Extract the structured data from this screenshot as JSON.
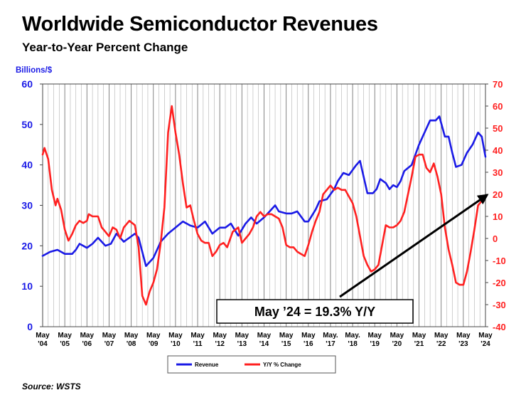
{
  "title": "Worldwide Semiconductor Revenues",
  "subtitle": "Year-to-Year Percent Change",
  "source": "Source: WSTS",
  "chart_data": {
    "type": "line",
    "ylabel": "Billions/$",
    "ylim_left": [
      0,
      60
    ],
    "ylim_right": [
      -40,
      70
    ],
    "yticks_left": [
      0,
      10,
      20,
      30,
      40,
      50,
      60
    ],
    "yticks_right": [
      -40,
      -30,
      -20,
      -10,
      0,
      10,
      20,
      30,
      40,
      50,
      60,
      70
    ],
    "grid": "vertical",
    "xticks": [
      {
        "t": 0,
        "l1": "May",
        "l2": "'04"
      },
      {
        "t": 12,
        "l1": "May",
        "l2": "'05"
      },
      {
        "t": 24,
        "l1": "May",
        "l2": "'06"
      },
      {
        "t": 36,
        "l1": "May",
        "l2": "'07"
      },
      {
        "t": 48,
        "l1": "May",
        "l2": "'08"
      },
      {
        "t": 60,
        "l1": "May",
        "l2": "'09"
      },
      {
        "t": 72,
        "l1": "May",
        "l2": "'10"
      },
      {
        "t": 84,
        "l1": "May",
        "l2": "'11"
      },
      {
        "t": 96,
        "l1": "May",
        "l2": "'12"
      },
      {
        "t": 108,
        "l1": "May",
        "l2": "'13"
      },
      {
        "t": 120,
        "l1": "May",
        "l2": "'14"
      },
      {
        "t": 132,
        "l1": "May",
        "l2": "'15"
      },
      {
        "t": 144,
        "l1": "May",
        "l2": "'16"
      },
      {
        "t": 156,
        "l1": "May.",
        "l2": "'17"
      },
      {
        "t": 168,
        "l1": "May.",
        "l2": "'18"
      },
      {
        "t": 180,
        "l1": "May",
        "l2": "'19"
      },
      {
        "t": 192,
        "l1": "May",
        "l2": "'20"
      },
      {
        "t": 204,
        "l1": "May",
        "l2": "'21"
      },
      {
        "t": 216,
        "l1": "May",
        "l2": "'22"
      },
      {
        "t": 228,
        "l1": "May",
        "l2": "'23"
      },
      {
        "t": 240,
        "l1": "May",
        "l2": "'24"
      }
    ],
    "xlim": [
      0,
      240
    ],
    "series": [
      {
        "name": "Revenue",
        "axis": "left",
        "color": "#1a1ae6",
        "points": [
          [
            0,
            17.5
          ],
          [
            4,
            18.5
          ],
          [
            8,
            19
          ],
          [
            12,
            18
          ],
          [
            16,
            18
          ],
          [
            18,
            19
          ],
          [
            20,
            20.5
          ],
          [
            24,
            19.5
          ],
          [
            27,
            20.5
          ],
          [
            30,
            22
          ],
          [
            34,
            20
          ],
          [
            37,
            20.5
          ],
          [
            40,
            23
          ],
          [
            44,
            21
          ],
          [
            47,
            22
          ],
          [
            50,
            23
          ],
          [
            52,
            22
          ],
          [
            56,
            15
          ],
          [
            60,
            17
          ],
          [
            64,
            21
          ],
          [
            68,
            23
          ],
          [
            72,
            24.5
          ],
          [
            76,
            26
          ],
          [
            80,
            25
          ],
          [
            84,
            24.5
          ],
          [
            88,
            26
          ],
          [
            92,
            23
          ],
          [
            96,
            24.5
          ],
          [
            99,
            24.5
          ],
          [
            102,
            25.5
          ],
          [
            106,
            22.5
          ],
          [
            110,
            25.5
          ],
          [
            113,
            27
          ],
          [
            116,
            25.5
          ],
          [
            120,
            27
          ],
          [
            124,
            29
          ],
          [
            126,
            30
          ],
          [
            128,
            28.5
          ],
          [
            132,
            28
          ],
          [
            135,
            28
          ],
          [
            138,
            28.5
          ],
          [
            142,
            26
          ],
          [
            144,
            26
          ],
          [
            148,
            29
          ],
          [
            150,
            31
          ],
          [
            154,
            31.5
          ],
          [
            158,
            34
          ],
          [
            160,
            36
          ],
          [
            163,
            38
          ],
          [
            166,
            37.5
          ],
          [
            170,
            40
          ],
          [
            172,
            41
          ],
          [
            175,
            35
          ],
          [
            176,
            33
          ],
          [
            179,
            33
          ],
          [
            181,
            34
          ],
          [
            183,
            36.5
          ],
          [
            186,
            35.5
          ],
          [
            188,
            34
          ],
          [
            190,
            35
          ],
          [
            192,
            34.5
          ],
          [
            194,
            36
          ],
          [
            196,
            38.5
          ],
          [
            200,
            40
          ],
          [
            204,
            45
          ],
          [
            208,
            49
          ],
          [
            210,
            51
          ],
          [
            213,
            51
          ],
          [
            215,
            52
          ],
          [
            218,
            47
          ],
          [
            220,
            47
          ],
          [
            222,
            43
          ],
          [
            224,
            39.5
          ],
          [
            227,
            40
          ],
          [
            230,
            43
          ],
          [
            233,
            45
          ],
          [
            236,
            48
          ],
          [
            238,
            47
          ],
          [
            240,
            42
          ]
        ]
      },
      {
        "name": "Y/Y % Change",
        "axis": "right",
        "color": "#ff2020",
        "points": [
          [
            0,
            38
          ],
          [
            1,
            41
          ],
          [
            3,
            36
          ],
          [
            5,
            22
          ],
          [
            7,
            15
          ],
          [
            8,
            18
          ],
          [
            10,
            13
          ],
          [
            12,
            4
          ],
          [
            14,
            -1
          ],
          [
            16,
            2
          ],
          [
            18,
            6
          ],
          [
            20,
            8
          ],
          [
            22,
            7
          ],
          [
            24,
            8
          ],
          [
            25,
            11
          ],
          [
            27,
            10
          ],
          [
            30,
            10
          ],
          [
            32,
            5
          ],
          [
            34,
            3
          ],
          [
            36,
            1
          ],
          [
            38,
            5
          ],
          [
            40,
            4
          ],
          [
            42,
            0
          ],
          [
            44,
            5
          ],
          [
            47,
            8
          ],
          [
            50,
            6
          ],
          [
            52,
            -4
          ],
          [
            54,
            -26
          ],
          [
            56,
            -30
          ],
          [
            58,
            -24
          ],
          [
            60,
            -20
          ],
          [
            62,
            -14
          ],
          [
            64,
            -2
          ],
          [
            66,
            14
          ],
          [
            68,
            48
          ],
          [
            70,
            60
          ],
          [
            72,
            48
          ],
          [
            74,
            38
          ],
          [
            76,
            25
          ],
          [
            78,
            14
          ],
          [
            80,
            15
          ],
          [
            82,
            8
          ],
          [
            84,
            2
          ],
          [
            86,
            -1
          ],
          [
            88,
            -2
          ],
          [
            90,
            -2
          ],
          [
            92,
            -8
          ],
          [
            94,
            -6
          ],
          [
            96,
            -3
          ],
          [
            98,
            -2
          ],
          [
            100,
            -4
          ],
          [
            103,
            3
          ],
          [
            106,
            5
          ],
          [
            108,
            -2
          ],
          [
            110,
            0
          ],
          [
            112,
            2
          ],
          [
            114,
            5
          ],
          [
            116,
            10
          ],
          [
            118,
            12
          ],
          [
            120,
            10
          ],
          [
            122,
            11
          ],
          [
            124,
            11
          ],
          [
            126,
            10
          ],
          [
            128,
            9
          ],
          [
            130,
            5
          ],
          [
            132,
            -3
          ],
          [
            134,
            -4
          ],
          [
            136,
            -4
          ],
          [
            138,
            -6
          ],
          [
            140,
            -7
          ],
          [
            142,
            -8
          ],
          [
            144,
            -3
          ],
          [
            146,
            3
          ],
          [
            148,
            8
          ],
          [
            150,
            12
          ],
          [
            152,
            20
          ],
          [
            154,
            22
          ],
          [
            156,
            24
          ],
          [
            158,
            22
          ],
          [
            160,
            23
          ],
          [
            162,
            22
          ],
          [
            164,
            22
          ],
          [
            166,
            19
          ],
          [
            168,
            16
          ],
          [
            170,
            10
          ],
          [
            172,
            1
          ],
          [
            174,
            -8
          ],
          [
            176,
            -12
          ],
          [
            178,
            -15
          ],
          [
            180,
            -14
          ],
          [
            182,
            -12
          ],
          [
            184,
            -3
          ],
          [
            186,
            6
          ],
          [
            188,
            5
          ],
          [
            190,
            5
          ],
          [
            192,
            6
          ],
          [
            194,
            8
          ],
          [
            196,
            12
          ],
          [
            198,
            20
          ],
          [
            200,
            28
          ],
          [
            202,
            37
          ],
          [
            204,
            38
          ],
          [
            206,
            38
          ],
          [
            208,
            32
          ],
          [
            210,
            30
          ],
          [
            212,
            34
          ],
          [
            214,
            28
          ],
          [
            216,
            20
          ],
          [
            218,
            5
          ],
          [
            220,
            -5
          ],
          [
            222,
            -12
          ],
          [
            224,
            -20
          ],
          [
            226,
            -21
          ],
          [
            228,
            -21
          ],
          [
            230,
            -15
          ],
          [
            232,
            -6
          ],
          [
            234,
            4
          ],
          [
            236,
            15
          ],
          [
            238,
            17
          ],
          [
            240,
            19.3
          ]
        ]
      }
    ],
    "annotation": "May ’24 = 19.3% Y/Y",
    "legend": "bottom-center"
  },
  "colors": {
    "revenue": "#1a1ae6",
    "change": "#ff2020",
    "axis_left_text": "#1a1ae6",
    "axis_right_text": "#ff2020"
  }
}
